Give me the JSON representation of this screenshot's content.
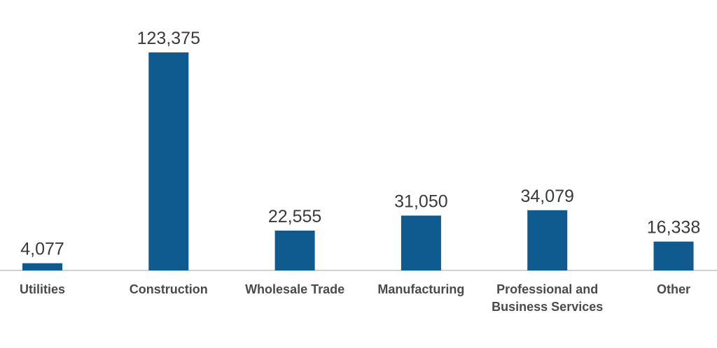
{
  "chart_data": {
    "type": "bar",
    "categories": [
      [
        "Utilities"
      ],
      [
        "Construction"
      ],
      [
        "Wholesale Trade"
      ],
      [
        "Manufacturing"
      ],
      [
        "Professional and",
        "Business Services"
      ],
      [
        "Other"
      ]
    ],
    "values": [
      4077,
      123375,
      22555,
      31050,
      34079,
      16338
    ],
    "value_labels": [
      "4,077",
      "123,375",
      "22,555",
      "31,050",
      "34,079",
      "16,338"
    ],
    "title": "",
    "xlabel": "",
    "ylabel": "",
    "ylim": [
      0,
      123375
    ],
    "grid": false,
    "bar_color": "#0f5a8e",
    "axis_color": "#d0d0d0"
  }
}
